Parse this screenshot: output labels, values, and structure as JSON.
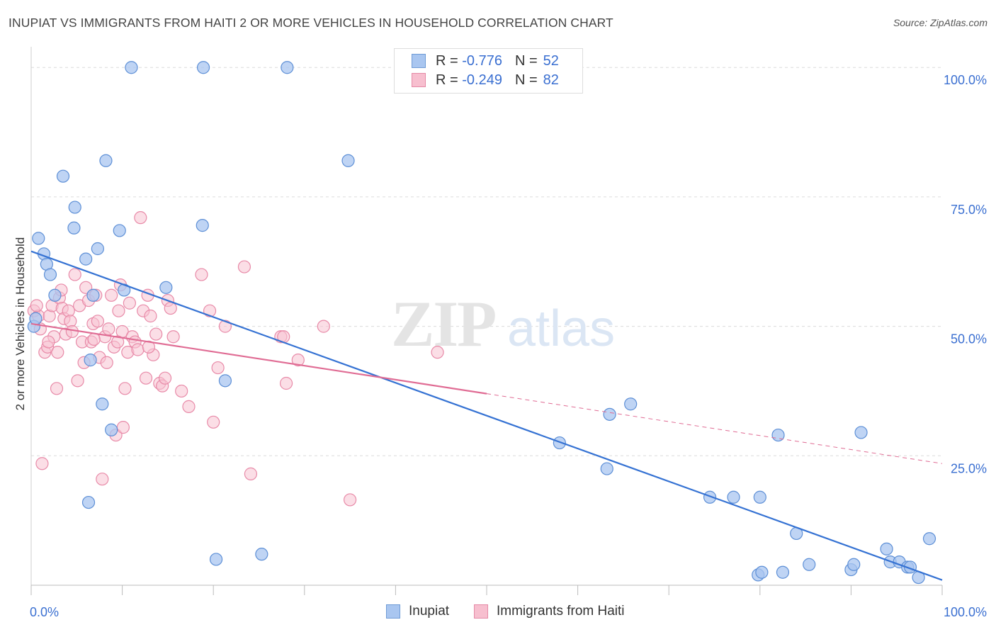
{
  "title": "INUPIAT VS IMMIGRANTS FROM HAITI 2 OR MORE VEHICLES IN HOUSEHOLD CORRELATION CHART",
  "source": "Source: ZipAtlas.com",
  "watermark": {
    "zip": "ZIP",
    "atlas": "atlas"
  },
  "legend": {
    "rows": [
      {
        "r_label": "R =",
        "r_value": "-0.776",
        "n_label": "N =",
        "n_value": "52",
        "color": "#a9c6f0",
        "border": "#6f9bd6"
      },
      {
        "r_label": "R =",
        "r_value": "-0.249",
        "n_label": "N =",
        "n_value": "82",
        "color": "#f7bfcf",
        "border": "#e58aa6"
      }
    ]
  },
  "bottom_legend": {
    "inupiat": "Inupiat",
    "haiti": "Immigrants from Haiti"
  },
  "chart_data": {
    "type": "scatter",
    "xlabel": "",
    "ylabel": "2 or more Vehicles in Household",
    "xlim": [
      0,
      100
    ],
    "ylim": [
      0,
      104
    ],
    "x_tick_labels": [
      {
        "value": 0,
        "label": "0.0%"
      },
      {
        "value": 100,
        "label": "100.0%"
      }
    ],
    "y_tick_labels": [
      {
        "value": 25,
        "label": "25.0%"
      },
      {
        "value": 50,
        "label": "50.0%"
      },
      {
        "value": 75,
        "label": "75.0%"
      },
      {
        "value": 100,
        "label": "100.0%"
      }
    ],
    "grid": true,
    "colors": {
      "inupiat_fill": "#a9c6f0",
      "inupiat_stroke": "#5d8fd6",
      "inupiat_line": "#3572d3",
      "haiti_fill": "#f7c3d2",
      "haiti_stroke": "#e88aa8",
      "haiti_line": "#e06c94",
      "axis_label": "#3a6fd1"
    },
    "series": [
      {
        "name": "Inupiat",
        "trend": {
          "x": [
            0,
            100
          ],
          "y": [
            64.5,
            1
          ]
        },
        "points": [
          [
            0.3,
            50
          ],
          [
            0.5,
            51.5
          ],
          [
            0.8,
            67
          ],
          [
            1.4,
            64
          ],
          [
            1.7,
            62
          ],
          [
            2.1,
            60
          ],
          [
            2.6,
            56
          ],
          [
            3.5,
            79
          ],
          [
            4.7,
            69
          ],
          [
            4.8,
            73
          ],
          [
            6,
            63
          ],
          [
            6.3,
            16
          ],
          [
            6.8,
            56
          ],
          [
            6.5,
            43.5
          ],
          [
            7.3,
            65
          ],
          [
            7.8,
            35
          ],
          [
            8.2,
            82
          ],
          [
            8.8,
            30
          ],
          [
            9.7,
            68.5
          ],
          [
            10.2,
            57
          ],
          [
            11,
            100
          ],
          [
            18.9,
            100
          ],
          [
            18.8,
            69.5
          ],
          [
            20.3,
            5
          ],
          [
            21.3,
            39.5
          ],
          [
            25.3,
            6
          ],
          [
            28.1,
            100
          ],
          [
            14.8,
            57.5
          ],
          [
            34.8,
            82
          ],
          [
            58,
            27.5
          ],
          [
            63.2,
            22.5
          ],
          [
            63.5,
            33
          ],
          [
            65.8,
            35
          ],
          [
            74.5,
            17
          ],
          [
            77.1,
            17
          ],
          [
            82,
            29
          ],
          [
            84,
            10
          ],
          [
            80,
            17
          ],
          [
            79.8,
            2
          ],
          [
            80.2,
            2.5
          ],
          [
            82.5,
            2.5
          ],
          [
            85.4,
            4
          ],
          [
            90,
            3
          ],
          [
            90.3,
            4
          ],
          [
            91.1,
            29.5
          ],
          [
            93.9,
            7
          ],
          [
            94.3,
            4.5
          ],
          [
            95.3,
            4.5
          ],
          [
            96.2,
            3.5
          ],
          [
            96.5,
            3.5
          ],
          [
            97.4,
            1.5
          ],
          [
            98.6,
            9
          ]
        ]
      },
      {
        "name": "Immigrants from Haiti",
        "trend": {
          "x": [
            0,
            100
          ],
          "y": [
            50.5,
            23.5
          ],
          "solid_until": 50
        },
        "points": [
          [
            0.3,
            53
          ],
          [
            0.8,
            52
          ],
          [
            1,
            49.5
          ],
          [
            1.2,
            23.5
          ],
          [
            1.5,
            45
          ],
          [
            1.8,
            46
          ],
          [
            2,
            52
          ],
          [
            2.3,
            54
          ],
          [
            2.5,
            48
          ],
          [
            2.8,
            38
          ],
          [
            3.1,
            55.5
          ],
          [
            3.3,
            57
          ],
          [
            3.4,
            53.5
          ],
          [
            3.6,
            51.5
          ],
          [
            3.8,
            48.5
          ],
          [
            4.1,
            53
          ],
          [
            4.3,
            51
          ],
          [
            4.5,
            49
          ],
          [
            4.8,
            60
          ],
          [
            5.1,
            39.5
          ],
          [
            5.3,
            54
          ],
          [
            5.6,
            47
          ],
          [
            5.8,
            43
          ],
          [
            6,
            57.5
          ],
          [
            6.3,
            55
          ],
          [
            6.6,
            47
          ],
          [
            6.8,
            50.5
          ],
          [
            7.1,
            56
          ],
          [
            7.3,
            51
          ],
          [
            7.5,
            44
          ],
          [
            7.8,
            20.5
          ],
          [
            8.1,
            48
          ],
          [
            8.3,
            43
          ],
          [
            8.5,
            49.5
          ],
          [
            8.8,
            56
          ],
          [
            9.1,
            46
          ],
          [
            9.3,
            29
          ],
          [
            9.6,
            53
          ],
          [
            9.8,
            58
          ],
          [
            10,
            49
          ],
          [
            10.1,
            30.5
          ],
          [
            10.3,
            38
          ],
          [
            10.6,
            45
          ],
          [
            10.8,
            54.5
          ],
          [
            11.1,
            48
          ],
          [
            11.4,
            47
          ],
          [
            11.7,
            45.5
          ],
          [
            12,
            71
          ],
          [
            12.3,
            53
          ],
          [
            12.6,
            40
          ],
          [
            12.8,
            56
          ],
          [
            13.1,
            52
          ],
          [
            13.4,
            44.5
          ],
          [
            13.7,
            48.5
          ],
          [
            14.1,
            39
          ],
          [
            14.4,
            38.5
          ],
          [
            14.7,
            40
          ],
          [
            15,
            55
          ],
          [
            15.3,
            53.5
          ],
          [
            15.6,
            48
          ],
          [
            16.5,
            37.5
          ],
          [
            17.3,
            34.5
          ],
          [
            18.7,
            60
          ],
          [
            19.6,
            53
          ],
          [
            20,
            31.5
          ],
          [
            20.5,
            42
          ],
          [
            21.3,
            50
          ],
          [
            23.4,
            61.5
          ],
          [
            24.1,
            21.5
          ],
          [
            27.4,
            48
          ],
          [
            27.7,
            48
          ],
          [
            28,
            39
          ],
          [
            29.3,
            43.5
          ],
          [
            32.1,
            50
          ],
          [
            35,
            16.5
          ],
          [
            44.6,
            45
          ],
          [
            0.6,
            54
          ],
          [
            1.9,
            47
          ],
          [
            2.9,
            45
          ],
          [
            6.9,
            47.5
          ],
          [
            9.5,
            47
          ],
          [
            12.9,
            46
          ]
        ]
      }
    ]
  }
}
